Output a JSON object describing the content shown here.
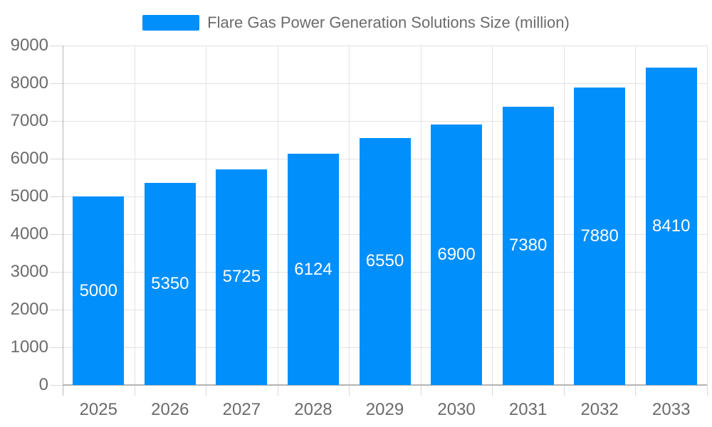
{
  "legend": {
    "items": [
      {
        "label": "Flare Gas Power Generation Solutions Size (million)"
      }
    ],
    "position": "top"
  },
  "chart_data": {
    "type": "bar",
    "title": "Flare Gas Power Generation Solutions Size (million)",
    "categories": [
      "2025",
      "2026",
      "2027",
      "2028",
      "2029",
      "2030",
      "2031",
      "2032",
      "2033"
    ],
    "values": [
      5000,
      5350,
      5725,
      6124,
      6550,
      6900,
      7380,
      7880,
      8410
    ],
    "series_name": "Flare Gas Power Generation Solutions Size (million)",
    "xlabel": "",
    "ylabel": "",
    "ylim": [
      0,
      9000
    ],
    "ytick_step": 1000,
    "ytick_labels": [
      "0",
      "1000",
      "2000",
      "3000",
      "4000",
      "5000",
      "6000",
      "7000",
      "8000",
      "9000"
    ],
    "grid": true,
    "data_labels": "inside-center",
    "legend_position": "top",
    "colors": {
      "bar": "#008FFB",
      "bar_label_text": "#ffffff",
      "axis_text": "#6b6b6b",
      "legend_text": "#6b6b6b",
      "gridline": "#e3e3e3",
      "tick": "#d9d9d9",
      "axis_line": "#b4b4b4",
      "background": "#ffffff"
    }
  }
}
